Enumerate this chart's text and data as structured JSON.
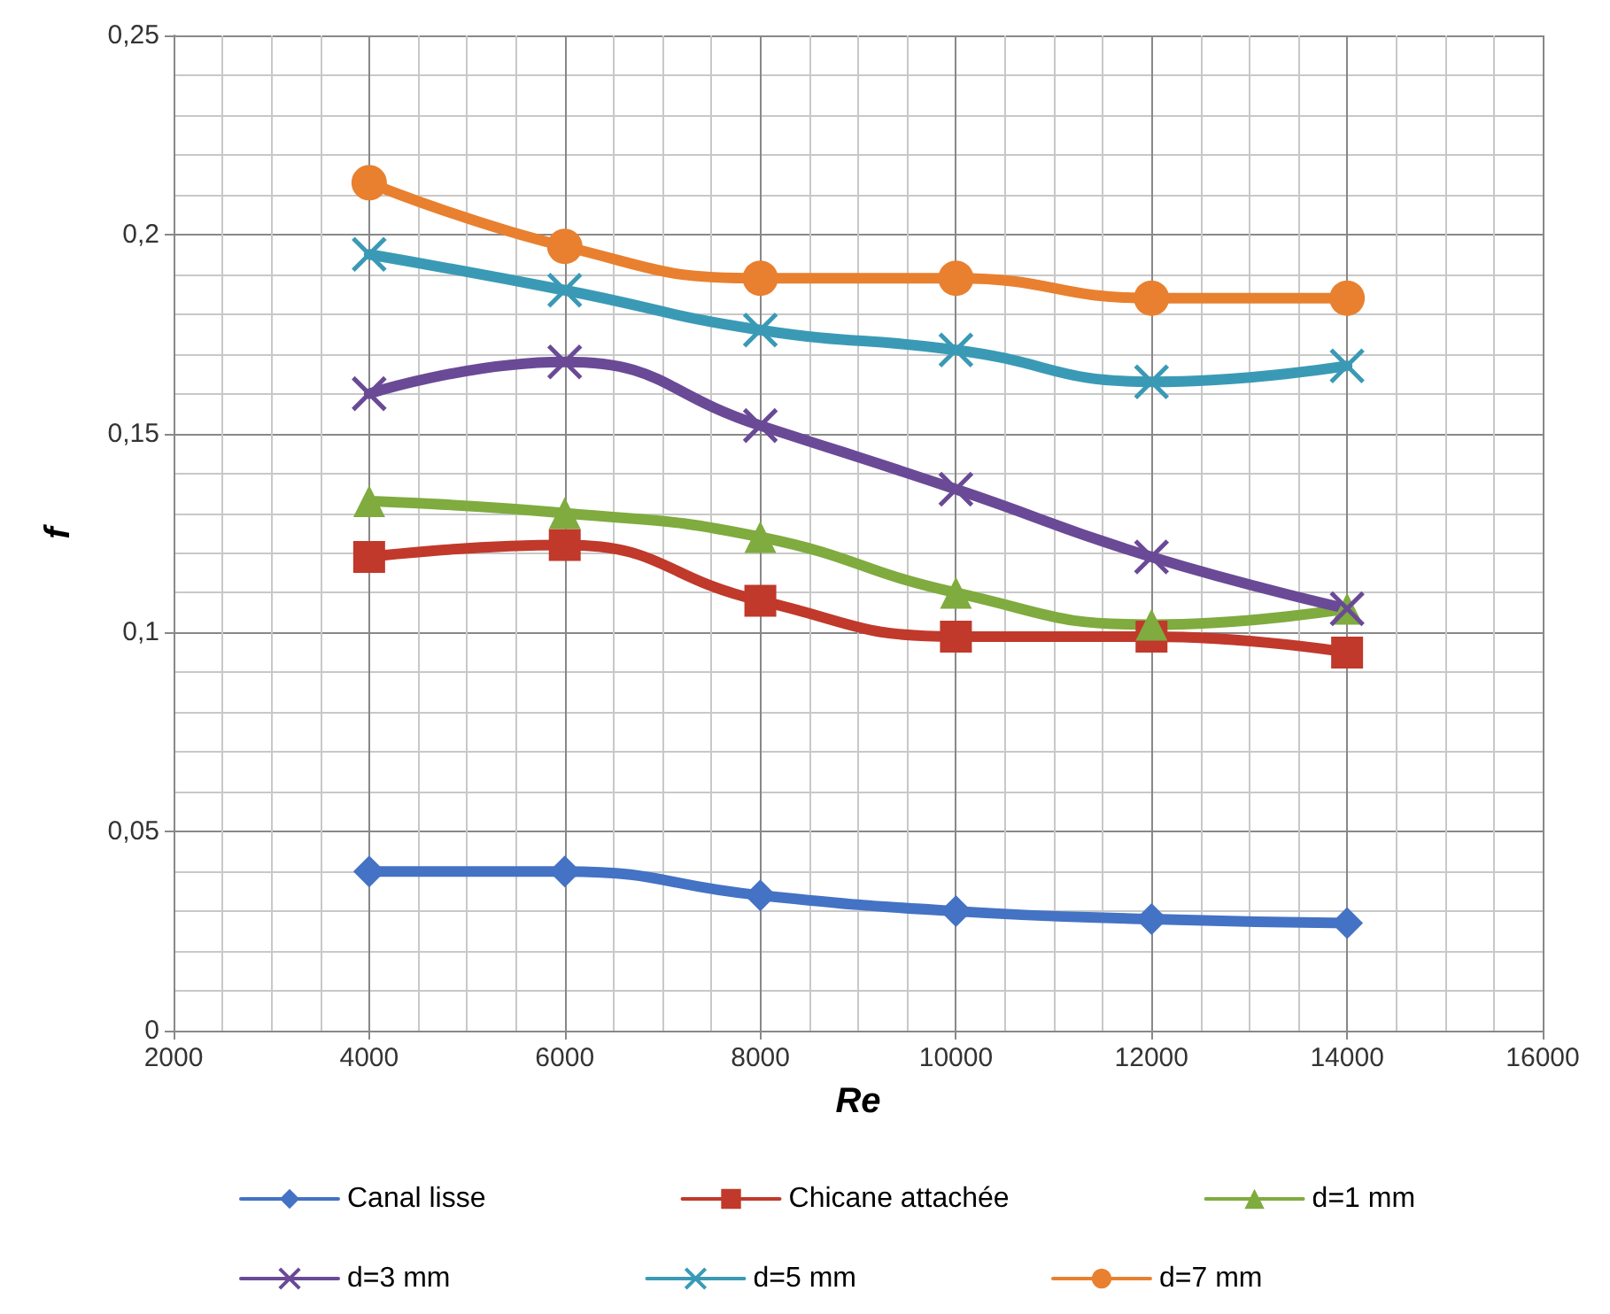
{
  "chart_data": {
    "type": "line",
    "xlabel": "Re",
    "ylabel": "f",
    "x": [
      4000,
      6000,
      8000,
      10000,
      12000,
      14000
    ],
    "series": [
      {
        "name": "Canal lisse",
        "color": "#4472c4",
        "marker": "diamond",
        "values": [
          0.04,
          0.04,
          0.034,
          0.03,
          0.028,
          0.027
        ]
      },
      {
        "name": "Chicane attachée",
        "color": "#c0392b",
        "marker": "square",
        "values": [
          0.119,
          0.122,
          0.108,
          0.099,
          0.099,
          0.095
        ]
      },
      {
        "name": "d=1 mm",
        "color": "#7fab3f",
        "marker": "triangle",
        "values": [
          0.133,
          0.13,
          0.124,
          0.11,
          0.102,
          0.106
        ]
      },
      {
        "name": "d=3 mm",
        "color": "#6a4a96",
        "marker": "cross",
        "values": [
          0.16,
          0.168,
          0.152,
          0.136,
          0.119,
          0.106
        ]
      },
      {
        "name": "d=5 mm",
        "color": "#3a9ab5",
        "marker": "cross",
        "values": [
          0.195,
          0.186,
          0.176,
          0.171,
          0.163,
          0.167
        ]
      },
      {
        "name": "d=7 mm",
        "color": "#e8802f",
        "marker": "circle",
        "values": [
          0.213,
          0.197,
          0.189,
          0.189,
          0.184,
          0.184
        ]
      }
    ],
    "xlim": [
      2000,
      16000
    ],
    "xticks": [
      2000,
      4000,
      6000,
      8000,
      10000,
      12000,
      14000,
      16000
    ],
    "ylim": [
      0,
      0.25
    ],
    "yticks": [
      0,
      {
        "value": 0.05,
        "label": "0,05"
      },
      {
        "value": 0.1,
        "label": "0,1"
      },
      {
        "value": 0.15,
        "label": "0,15"
      },
      {
        "value": 0.2,
        "label": "0,2"
      },
      {
        "value": 0.25,
        "label": "0,25"
      }
    ],
    "grid": true,
    "legend": "bottom",
    "line_style": "solid"
  }
}
